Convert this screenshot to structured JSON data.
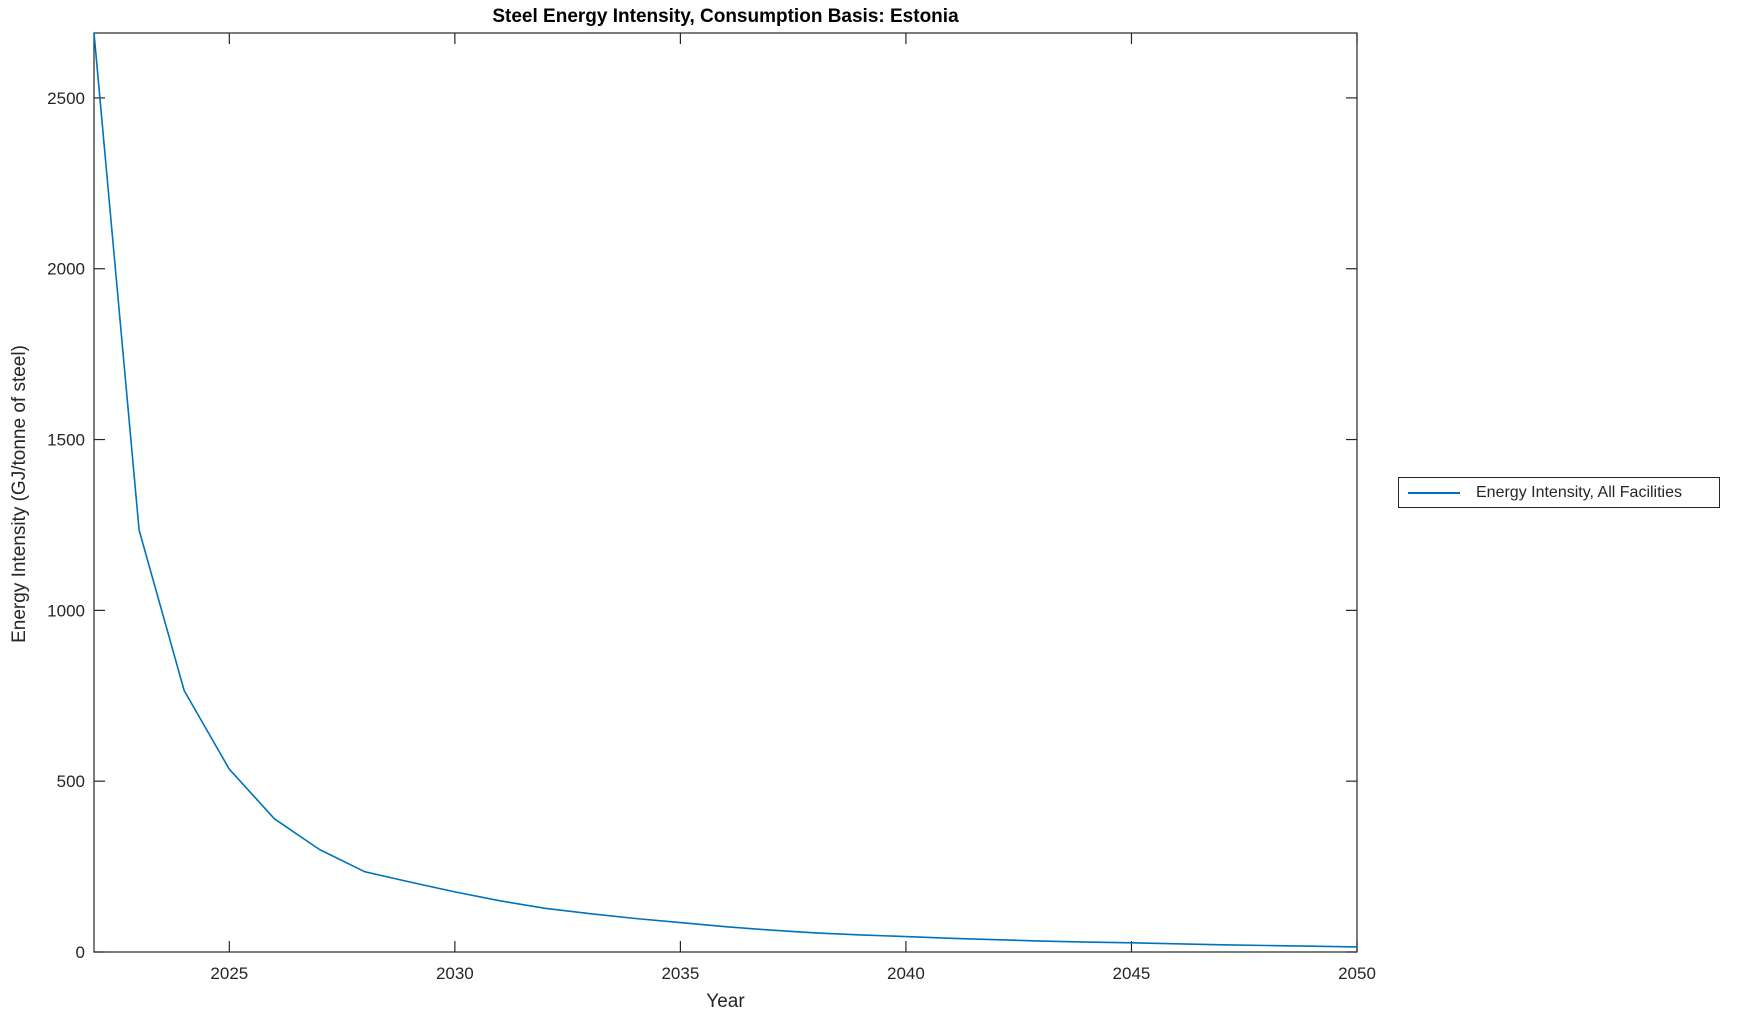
{
  "figure": {
    "title": "Steel Energy Intensity, Consumption Basis: Estonia",
    "xlabel": "Year",
    "ylabel": "Energy Intensity (GJ/tonne of steel)",
    "legend": {
      "entries": [
        {
          "label": "Energy Intensity, All Facilities",
          "color": "#0072BD"
        }
      ]
    }
  },
  "chart_data": {
    "type": "line",
    "title": "Steel Energy Intensity, Consumption Basis: Estonia",
    "xlabel": "Year",
    "ylabel": "Energy Intensity (GJ/tonne of steel)",
    "xlim": [
      2022,
      2050
    ],
    "ylim": [
      0,
      2690
    ],
    "x_ticks": [
      "2025",
      "2030",
      "2035",
      "2040",
      "2045",
      "2050"
    ],
    "x_tick_values": [
      2025,
      2030,
      2035,
      2040,
      2045,
      2050
    ],
    "y_ticks": [
      "0",
      "500",
      "1000",
      "1500",
      "2000",
      "2500"
    ],
    "y_tick_values": [
      0,
      500,
      1000,
      1500,
      2000,
      2500
    ],
    "grid": false,
    "box": true,
    "legend_position": "right-outside",
    "line_color": "#0072BD",
    "axis_color": "#262626",
    "series": [
      {
        "name": "Energy Intensity, All Facilities",
        "x": [
          2022,
          2023,
          2024,
          2025,
          2026,
          2027,
          2028,
          2029,
          2030,
          2031,
          2032,
          2033,
          2034,
          2035,
          2036,
          2037,
          2038,
          2039,
          2040,
          2041,
          2042,
          2043,
          2044,
          2045,
          2046,
          2047,
          2048,
          2049,
          2050
        ],
        "y": [
          2690,
          1235,
          765,
          535,
          390,
          300,
          235,
          205,
          176,
          150,
          128,
          112,
          98,
          86,
          74,
          64,
          56,
          50,
          45,
          40,
          36,
          32,
          29,
          27,
          24,
          21,
          19,
          17,
          15
        ]
      }
    ]
  }
}
